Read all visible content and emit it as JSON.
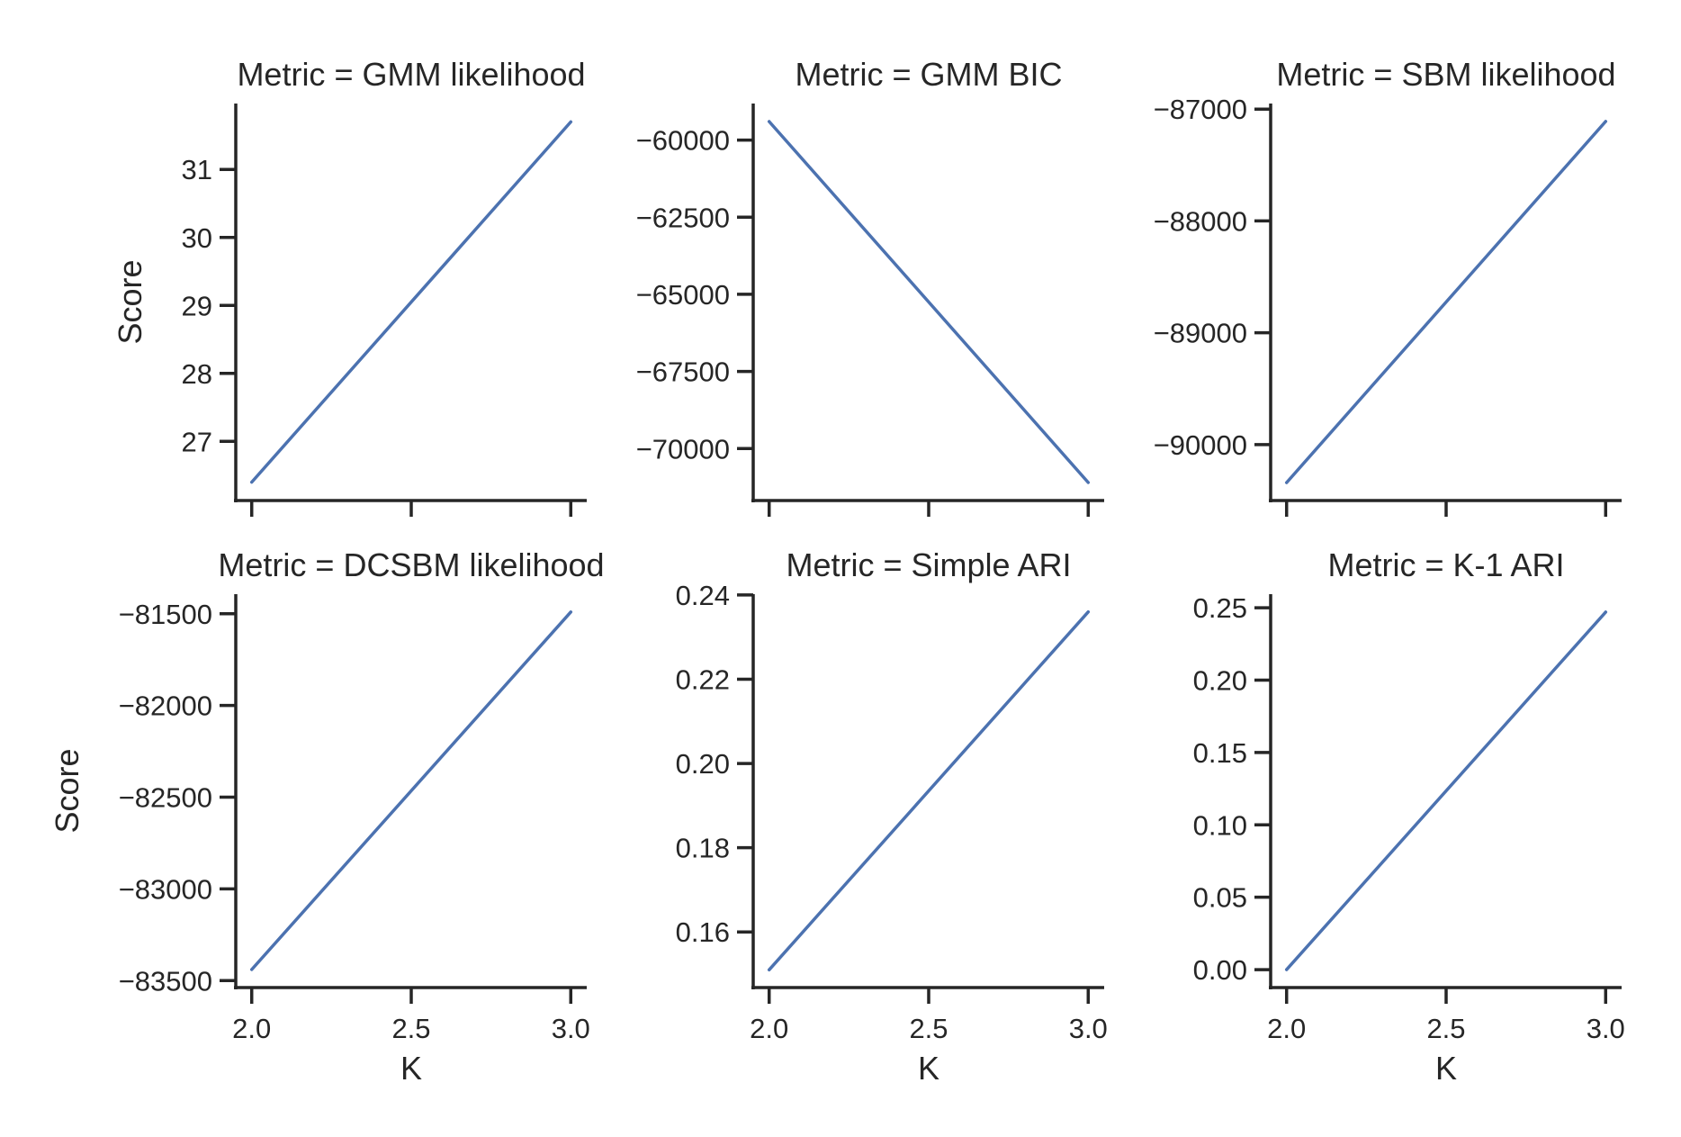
{
  "chart_data": [
    {
      "type": "line",
      "title": "Metric = GMM likelihood",
      "xlabel": "",
      "ylabel": "Score",
      "x": [
        2.0,
        3.0
      ],
      "series": [
        {
          "values": [
            26.4,
            31.7
          ]
        }
      ],
      "xlim": [
        1.95,
        3.05
      ],
      "ylim": [
        26.13,
        31.97
      ],
      "xticks": [
        2.0,
        2.5,
        3.0
      ],
      "xtick_labels": [
        "",
        "",
        ""
      ],
      "yticks": [
        27,
        28,
        29,
        30,
        31
      ],
      "ytick_labels": [
        "27",
        "28",
        "29",
        "30",
        "31"
      ],
      "color": "#4c72b0",
      "grid": false
    },
    {
      "type": "line",
      "title": "Metric = GMM BIC",
      "xlabel": "",
      "ylabel": "",
      "x": [
        2.0,
        3.0
      ],
      "series": [
        {
          "values": [
            -59400,
            -71100
          ]
        }
      ],
      "xlim": [
        1.95,
        3.05
      ],
      "ylim": [
        -71685,
        -58815
      ],
      "xticks": [
        2.0,
        2.5,
        3.0
      ],
      "xtick_labels": [
        "",
        "",
        ""
      ],
      "yticks": [
        -70000,
        -67500,
        -65000,
        -62500,
        -60000
      ],
      "ytick_labels": [
        "−70000",
        "−67500",
        "−65000",
        "−62500",
        "−60000"
      ],
      "color": "#4c72b0",
      "grid": false
    },
    {
      "type": "line",
      "title": "Metric = SBM likelihood",
      "xlabel": "",
      "ylabel": "",
      "x": [
        2.0,
        3.0
      ],
      "series": [
        {
          "values": [
            -90340,
            -87110
          ]
        }
      ],
      "xlim": [
        1.95,
        3.05
      ],
      "ylim": [
        -90500,
        -86950
      ],
      "xticks": [
        2.0,
        2.5,
        3.0
      ],
      "xtick_labels": [
        "",
        "",
        ""
      ],
      "yticks": [
        -90000,
        -89000,
        -88000,
        -87000
      ],
      "ytick_labels": [
        "−90000",
        "−89000",
        "−88000",
        "−87000"
      ],
      "color": "#4c72b0",
      "grid": false
    },
    {
      "type": "line",
      "title": "Metric = DCSBM likelihood",
      "xlabel": "K",
      "ylabel": "Score",
      "x": [
        2.0,
        3.0
      ],
      "series": [
        {
          "values": [
            -83440,
            -81490
          ]
        }
      ],
      "xlim": [
        1.95,
        3.05
      ],
      "ylim": [
        -83538,
        -81393
      ],
      "xticks": [
        2.0,
        2.5,
        3.0
      ],
      "xtick_labels": [
        "2.0",
        "2.5",
        "3.0"
      ],
      "yticks": [
        -83500,
        -83000,
        -82500,
        -82000,
        -81500
      ],
      "ytick_labels": [
        "−83500",
        "−83000",
        "−82500",
        "−82000",
        "−81500"
      ],
      "color": "#4c72b0",
      "grid": false
    },
    {
      "type": "line",
      "title": "Metric = Simple ARI",
      "xlabel": "K",
      "ylabel": "",
      "x": [
        2.0,
        3.0
      ],
      "series": [
        {
          "values": [
            0.151,
            0.236
          ]
        }
      ],
      "xlim": [
        1.95,
        3.05
      ],
      "ylim": [
        0.1468,
        0.2402
      ],
      "xticks": [
        2.0,
        2.5,
        3.0
      ],
      "xtick_labels": [
        "2.0",
        "2.5",
        "3.0"
      ],
      "yticks": [
        0.16,
        0.18,
        0.2,
        0.22,
        0.24
      ],
      "ytick_labels": [
        "0.16",
        "0.18",
        "0.20",
        "0.22",
        "0.24"
      ],
      "color": "#4c72b0",
      "grid": false
    },
    {
      "type": "line",
      "title": "Metric = K-1 ARI",
      "xlabel": "K",
      "ylabel": "",
      "x": [
        2.0,
        3.0
      ],
      "series": [
        {
          "values": [
            0.0,
            0.247
          ]
        }
      ],
      "xlim": [
        1.95,
        3.05
      ],
      "ylim": [
        -0.0124,
        0.2594
      ],
      "xticks": [
        2.0,
        2.5,
        3.0
      ],
      "xtick_labels": [
        "2.0",
        "2.5",
        "3.0"
      ],
      "yticks": [
        0.0,
        0.05,
        0.1,
        0.15,
        0.2,
        0.25
      ],
      "ytick_labels": [
        "0.00",
        "0.05",
        "0.10",
        "0.15",
        "0.20",
        "0.25"
      ],
      "color": "#4c72b0",
      "grid": false
    }
  ]
}
